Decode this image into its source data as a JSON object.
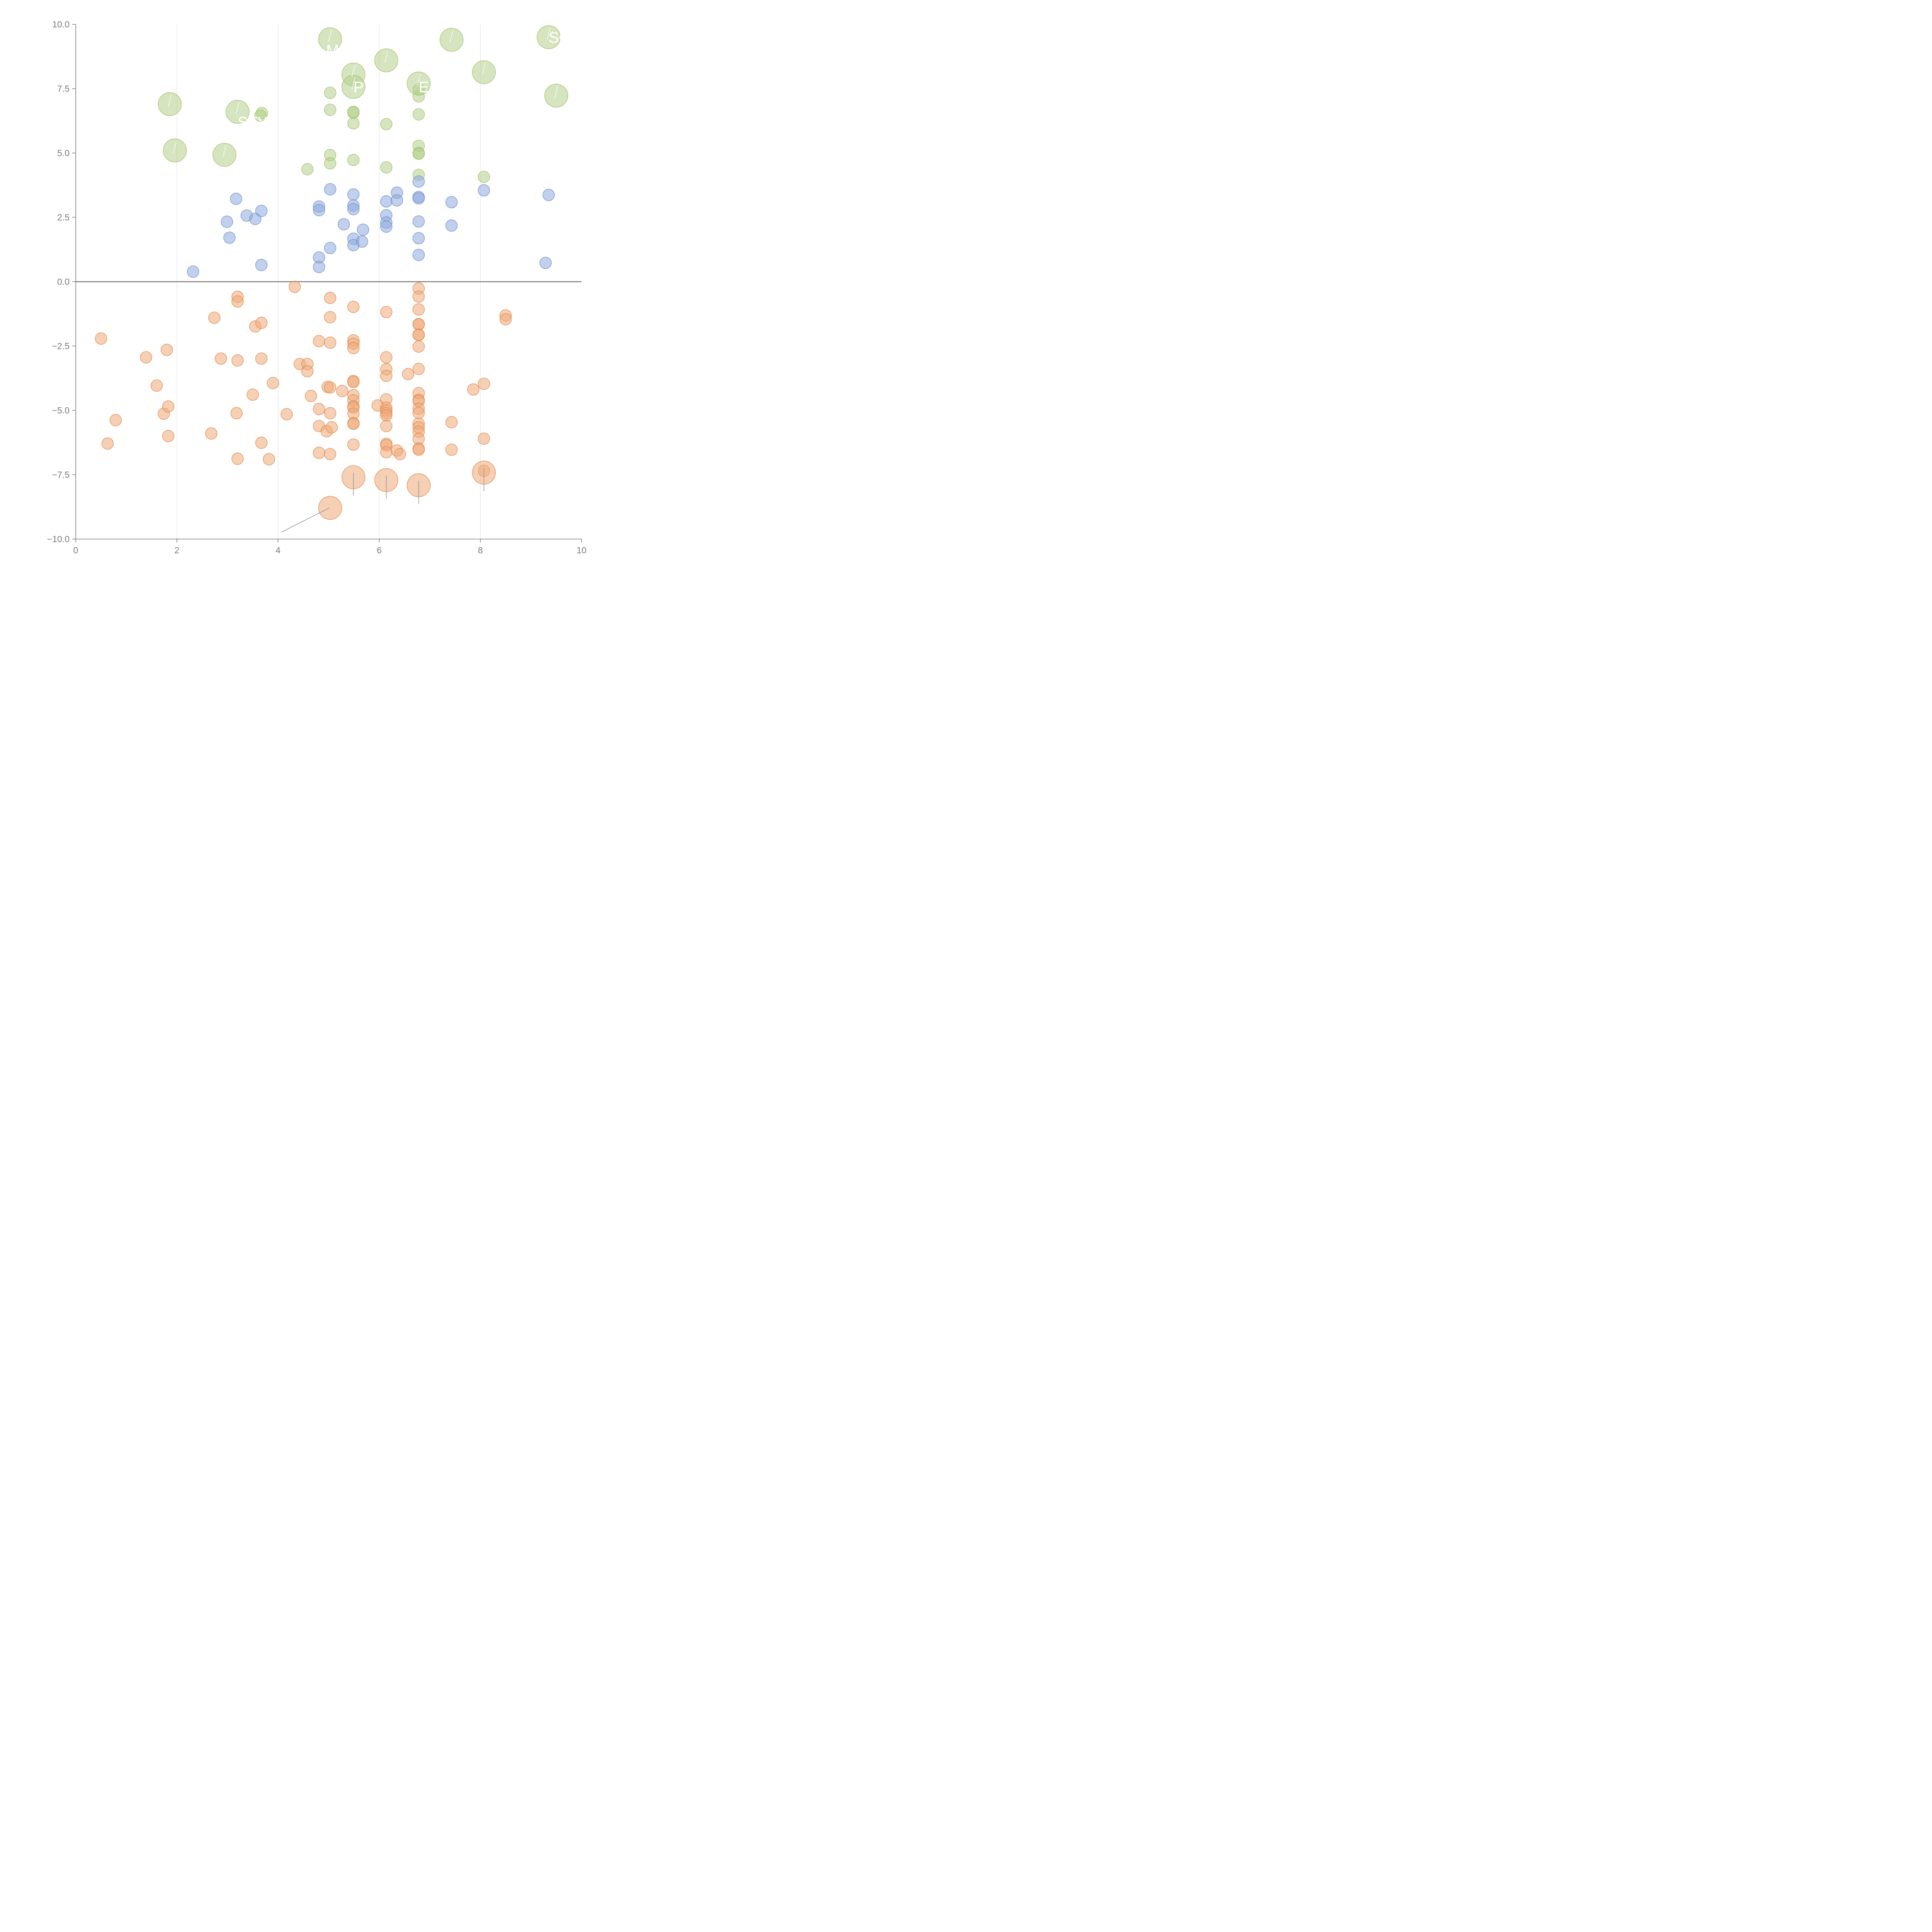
{
  "chart_data": {
    "type": "scatter",
    "title": "",
    "xlabel": "",
    "ylabel": "",
    "xlim": [
      0,
      10
    ],
    "ylim": [
      -10,
      10
    ],
    "x_ticks": [
      "0",
      "2",
      "4",
      "6",
      "8",
      "10"
    ],
    "y_ticks": [
      "−10.0",
      "−7.5",
      "−5.0",
      "−2.5",
      "0.0",
      "2.5",
      "5.0",
      "7.5",
      "10.0"
    ],
    "x_tick_values": [
      0,
      2,
      4,
      6,
      8,
      10
    ],
    "y_tick_values": [
      -10,
      -7.5,
      -5,
      -2.5,
      0,
      2.5,
      5,
      7.5,
      10
    ],
    "grid": "vertical gridlines only",
    "zero_line": true,
    "colors": {
      "green": "#b5d08a",
      "green_edge": "#9ebf6a",
      "blue": "#8eaadc",
      "blue_edge": "#6c8fcc",
      "orange": "#eea978",
      "orange_edge": "#e0884a",
      "annotation_line_light": "#ffffff",
      "annotation_line_dark": "#9a9a9a",
      "axis": "#7d7d7d"
    },
    "series": [
      {
        "color": "green",
        "size": "small",
        "points": [
          [
            3.68,
            6.55
          ],
          [
            3.65,
            6.45
          ],
          [
            4.58,
            4.37
          ],
          [
            5.03,
            7.34
          ],
          [
            5.03,
            6.68
          ],
          [
            5.03,
            4.92
          ],
          [
            5.03,
            4.6
          ],
          [
            5.49,
            6.57
          ],
          [
            5.49,
            6.6
          ],
          [
            5.49,
            6.15
          ],
          [
            5.49,
            4.73
          ],
          [
            6.14,
            6.12
          ],
          [
            6.14,
            4.44
          ],
          [
            6.78,
            7.47
          ],
          [
            6.78,
            7.2
          ],
          [
            6.78,
            6.5
          ],
          [
            6.78,
            5.28
          ],
          [
            6.78,
            5.0
          ],
          [
            6.78,
            4.97
          ],
          [
            6.78,
            4.15
          ],
          [
            8.07,
            4.07
          ]
        ]
      },
      {
        "color": "green",
        "size": "large",
        "points": [
          [
            1.86,
            6.9
          ],
          [
            1.96,
            5.1
          ],
          [
            2.94,
            4.93
          ],
          [
            3.2,
            6.6
          ],
          [
            5.03,
            9.42
          ],
          [
            5.49,
            8.05
          ],
          [
            5.49,
            7.57
          ],
          [
            6.14,
            8.6
          ],
          [
            6.78,
            7.7
          ],
          [
            7.43,
            9.4
          ],
          [
            8.07,
            8.14
          ],
          [
            9.35,
            9.5
          ],
          [
            9.5,
            7.23
          ]
        ]
      },
      {
        "color": "blue",
        "size": "small",
        "points": [
          [
            2.32,
            0.39
          ],
          [
            2.99,
            2.33
          ],
          [
            3.04,
            1.71
          ],
          [
            3.17,
            3.22
          ],
          [
            3.38,
            2.57
          ],
          [
            3.55,
            2.44
          ],
          [
            3.67,
            2.75
          ],
          [
            3.67,
            0.65
          ],
          [
            4.81,
            2.92
          ],
          [
            4.81,
            2.78
          ],
          [
            4.81,
            0.94
          ],
          [
            4.81,
            0.57
          ],
          [
            5.03,
            3.59
          ],
          [
            5.03,
            1.31
          ],
          [
            5.3,
            2.23
          ],
          [
            5.49,
            3.39
          ],
          [
            5.49,
            2.96
          ],
          [
            5.49,
            2.82
          ],
          [
            5.49,
            1.67
          ],
          [
            5.49,
            1.42
          ],
          [
            5.66,
            1.56
          ],
          [
            5.68,
            2.02
          ],
          [
            6.14,
            3.12
          ],
          [
            6.14,
            2.58
          ],
          [
            6.14,
            2.3
          ],
          [
            6.14,
            2.14
          ],
          [
            6.35,
            3.46
          ],
          [
            6.35,
            3.16
          ],
          [
            6.78,
            3.89
          ],
          [
            6.78,
            3.29
          ],
          [
            6.78,
            3.24
          ],
          [
            6.78,
            2.34
          ],
          [
            6.78,
            1.69
          ],
          [
            6.78,
            1.04
          ],
          [
            7.43,
            3.09
          ],
          [
            7.43,
            2.18
          ],
          [
            8.07,
            3.55
          ],
          [
            9.29,
            0.73
          ],
          [
            9.35,
            3.37
          ]
        ]
      },
      {
        "color": "orange",
        "size": "small",
        "points": [
          [
            0.5,
            -2.21
          ],
          [
            0.63,
            -6.29
          ],
          [
            0.79,
            -5.38
          ],
          [
            1.39,
            -2.94
          ],
          [
            1.6,
            -4.04
          ],
          [
            1.74,
            -5.13
          ],
          [
            1.8,
            -2.65
          ],
          [
            1.83,
            -4.85
          ],
          [
            1.83,
            -6.0
          ],
          [
            2.68,
            -5.9
          ],
          [
            2.74,
            -1.4
          ],
          [
            2.87,
            -2.99
          ],
          [
            3.18,
            -5.11
          ],
          [
            3.2,
            -0.59
          ],
          [
            3.2,
            -0.77
          ],
          [
            3.2,
            -3.06
          ],
          [
            3.2,
            -6.88
          ],
          [
            3.5,
            -4.39
          ],
          [
            3.55,
            -1.74
          ],
          [
            3.67,
            -1.6
          ],
          [
            3.67,
            -2.99
          ],
          [
            3.67,
            -6.26
          ],
          [
            3.82,
            -6.9
          ],
          [
            3.9,
            -3.94
          ],
          [
            4.17,
            -5.15
          ],
          [
            4.33,
            -0.2
          ],
          [
            4.43,
            -3.2
          ],
          [
            4.58,
            -3.2
          ],
          [
            4.58,
            -3.48
          ],
          [
            4.65,
            -4.44
          ],
          [
            4.81,
            -2.31
          ],
          [
            4.81,
            -4.95
          ],
          [
            4.81,
            -5.61
          ],
          [
            4.81,
            -6.65
          ],
          [
            4.96,
            -5.81
          ],
          [
            4.98,
            -4.09
          ],
          [
            5.03,
            -0.63
          ],
          [
            5.03,
            -1.38
          ],
          [
            5.03,
            -2.37
          ],
          [
            5.03,
            -4.11
          ],
          [
            5.03,
            -5.11
          ],
          [
            5.03,
            -6.7
          ],
          [
            5.06,
            -5.66
          ],
          [
            5.27,
            -4.25
          ],
          [
            5.49,
            -0.98
          ],
          [
            5.49,
            -2.28
          ],
          [
            5.49,
            -2.41
          ],
          [
            5.49,
            -2.58
          ],
          [
            5.49,
            -3.86
          ],
          [
            5.49,
            -3.9
          ],
          [
            5.49,
            -4.41
          ],
          [
            5.49,
            -4.61
          ],
          [
            5.49,
            -4.84
          ],
          [
            5.49,
            -4.89
          ],
          [
            5.49,
            -5.13
          ],
          [
            5.49,
            -5.5
          ],
          [
            5.49,
            -5.52
          ],
          [
            5.49,
            -6.33
          ],
          [
            5.97,
            -4.81
          ],
          [
            6.14,
            -1.18
          ],
          [
            6.14,
            -2.94
          ],
          [
            6.14,
            -3.4
          ],
          [
            6.14,
            -3.66
          ],
          [
            6.14,
            -4.57
          ],
          [
            6.14,
            -4.9
          ],
          [
            6.14,
            -5.01
          ],
          [
            6.14,
            -5.11
          ],
          [
            6.14,
            -5.2
          ],
          [
            6.14,
            -5.61
          ],
          [
            6.14,
            -6.3
          ],
          [
            6.14,
            -6.36
          ],
          [
            6.14,
            -6.63
          ],
          [
            6.35,
            -6.56
          ],
          [
            6.41,
            -6.7
          ],
          [
            6.57,
            -3.59
          ],
          [
            6.78,
            -0.26
          ],
          [
            6.78,
            -0.58
          ],
          [
            6.78,
            -1.08
          ],
          [
            6.78,
            -1.65
          ],
          [
            6.78,
            -1.66
          ],
          [
            6.78,
            -2.06
          ],
          [
            6.78,
            -2.07
          ],
          [
            6.78,
            -2.52
          ],
          [
            6.78,
            -3.39
          ],
          [
            6.78,
            -4.33
          ],
          [
            6.78,
            -4.59
          ],
          [
            6.78,
            -4.64
          ],
          [
            6.78,
            -4.94
          ],
          [
            6.78,
            -5.1
          ],
          [
            6.78,
            -5.52
          ],
          [
            6.78,
            -5.66
          ],
          [
            6.78,
            -5.83
          ],
          [
            6.78,
            -6.11
          ],
          [
            6.78,
            -6.48
          ],
          [
            6.78,
            -6.53
          ],
          [
            7.43,
            -5.46
          ],
          [
            7.43,
            -6.53
          ],
          [
            7.86,
            -4.19
          ],
          [
            8.07,
            -3.97
          ],
          [
            8.07,
            -6.1
          ],
          [
            8.07,
            -7.35
          ],
          [
            8.5,
            -1.31
          ],
          [
            8.5,
            -1.46
          ]
        ]
      },
      {
        "color": "orange",
        "size": "large",
        "points": [
          [
            5.03,
            -8.79
          ],
          [
            5.49,
            -7.6
          ],
          [
            6.14,
            -7.71
          ],
          [
            6.78,
            -7.91
          ],
          [
            8.07,
            -7.42
          ]
        ]
      }
    ],
    "annotations": [
      {
        "text": "SC",
        "x": 9.35,
        "y": 9.5,
        "tx": 9.35,
        "ty": 9.5
      },
      {
        "text": "MDX",
        "x": 5.03,
        "y": 9.42,
        "tx": 4.95,
        "ty": 9.0
      },
      {
        "text": "P",
        "x": 5.49,
        "y": 7.57,
        "tx": 5.49,
        "ty": 7.57
      },
      {
        "text": "E",
        "x": 6.78,
        "y": 7.7,
        "tx": 6.78,
        "ty": 7.57
      },
      {
        "text": "STY",
        "x": 3.2,
        "y": 6.6,
        "tx": 3.2,
        "ty": 6.2
      }
    ]
  }
}
